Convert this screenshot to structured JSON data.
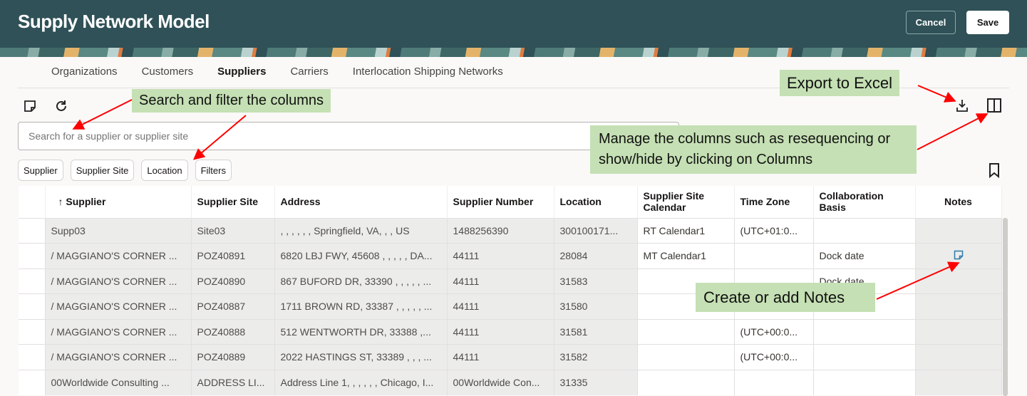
{
  "header": {
    "title": "Supply Network Model",
    "cancel_label": "Cancel",
    "save_label": "Save"
  },
  "tabs": [
    {
      "label": "Organizations"
    },
    {
      "label": "Customers"
    },
    {
      "label": "Suppliers",
      "active": true
    },
    {
      "label": "Carriers"
    },
    {
      "label": "Interlocation Shipping Networks"
    }
  ],
  "toolbar": {
    "icons": [
      "note-icon",
      "refresh-icon",
      "export-icon",
      "columns-icon",
      "bookmark-icon"
    ]
  },
  "search": {
    "placeholder": "Search for a supplier or supplier site",
    "value": ""
  },
  "filter_chips": [
    "Supplier",
    "Supplier Site",
    "Location",
    "Filters"
  ],
  "table": {
    "columns": [
      "Supplier",
      "Supplier Site",
      "Address",
      "Supplier Number",
      "Location",
      "Supplier Site Calendar",
      "Time Zone",
      "Collaboration Basis",
      "Notes"
    ],
    "sort": {
      "column": "Supplier",
      "direction": "ascending"
    },
    "rows": [
      [
        "Supp03",
        "Site03",
        ", , , , , , Springfield, VA, , , US",
        "1488256390",
        "300100171...",
        "RT Calendar1",
        "(UTC+01:0...",
        "",
        ""
      ],
      [
        "/ MAGGIANO'S CORNER ...",
        "POZ40891",
        "6820 LBJ FWY, 45608 , , , , , DA...",
        "44111",
        "28084",
        "MT Calendar1",
        "",
        "Dock date",
        "note"
      ],
      [
        "/ MAGGIANO'S CORNER ...",
        "POZ40890",
        "867 BUFORD DR, 33390 , , , , , ...",
        "44111",
        "31583",
        "",
        "",
        "Dock date",
        ""
      ],
      [
        "/ MAGGIANO'S CORNER ...",
        "POZ40887",
        "1711 BROWN RD, 33387 , , , , , ...",
        "44111",
        "31580",
        "",
        "",
        "",
        ""
      ],
      [
        "/ MAGGIANO'S CORNER ...",
        "POZ40888",
        "512 WENTWORTH DR, 33388 ,...",
        "44111",
        "31581",
        "",
        "(UTC+00:0...",
        "",
        ""
      ],
      [
        "/ MAGGIANO'S CORNER ...",
        "POZ40889",
        "2022 HASTINGS ST, 33389 , , , ...",
        "44111",
        "31582",
        "",
        "(UTC+00:0...",
        "",
        ""
      ],
      [
        "00Worldwide Consulting ...",
        "ADDRESS LI...",
        "Address Line 1, , , , , , Chicago, I...",
        "00Worldwide Con...",
        "31335",
        "",
        "",
        "",
        ""
      ]
    ]
  },
  "annotations": {
    "search": "Search and filter the columns",
    "export": "Export to Excel",
    "columns": "Manage the columns such as resequencing or show/hide by clicking on Columns",
    "notes": "Create or add Notes"
  },
  "colors": {
    "header": "#2f5157",
    "annotation": "#c5e0b4",
    "arrow": "#ff0000",
    "note_icon": "#2a7aa8"
  }
}
